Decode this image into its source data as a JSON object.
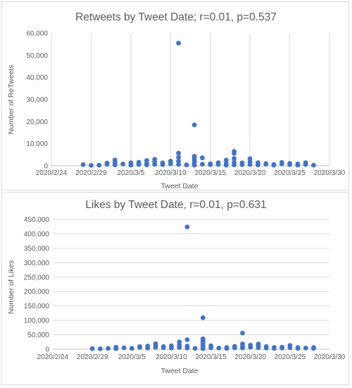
{
  "chart_data": [
    {
      "type": "scatter",
      "title": "Retweets by Tweet Date; r=0.01, p=0.537",
      "xlabel": "Tweet Date",
      "ylabel": "Number of ReTweets",
      "xlim": [
        "2020-02-24",
        "2020-03-30"
      ],
      "ylim": [
        0,
        60000
      ],
      "x_tick_labels": [
        "2020/2/24",
        "2020/2/29",
        "2020/3/5",
        "2020/3/10",
        "2020/3/15",
        "2020/3/20",
        "2020/3/25",
        "2020/3/30"
      ],
      "y_tick_labels": [
        "0",
        "10,000",
        "20,000",
        "30,000",
        "40,000",
        "50,000",
        "60,000"
      ],
      "grid": "vertical",
      "color": "#4472c4",
      "points": [
        [
          "2020-02-28",
          500
        ],
        [
          "2020-02-29",
          200
        ],
        [
          "2020-03-01",
          300
        ],
        [
          "2020-03-02",
          700
        ],
        [
          "2020-03-02",
          1200
        ],
        [
          "2020-03-03",
          400
        ],
        [
          "2020-03-03",
          1500
        ],
        [
          "2020-03-03",
          2600
        ],
        [
          "2020-03-04",
          800
        ],
        [
          "2020-03-05",
          300
        ],
        [
          "2020-03-05",
          1400
        ],
        [
          "2020-03-06",
          600
        ],
        [
          "2020-03-06",
          1600
        ],
        [
          "2020-03-07",
          400
        ],
        [
          "2020-03-07",
          1100
        ],
        [
          "2020-03-07",
          2400
        ],
        [
          "2020-03-08",
          700
        ],
        [
          "2020-03-08",
          1800
        ],
        [
          "2020-03-08",
          2900
        ],
        [
          "2020-03-09",
          500
        ],
        [
          "2020-03-09",
          1300
        ],
        [
          "2020-03-10",
          900
        ],
        [
          "2020-03-10",
          2100
        ],
        [
          "2020-03-11",
          600
        ],
        [
          "2020-03-11",
          2000
        ],
        [
          "2020-03-11",
          3800
        ],
        [
          "2020-03-11",
          5700
        ],
        [
          "2020-03-11",
          55500
        ],
        [
          "2020-03-12",
          400
        ],
        [
          "2020-03-13",
          300
        ],
        [
          "2020-03-13",
          1200
        ],
        [
          "2020-03-13",
          2500
        ],
        [
          "2020-03-13",
          3600
        ],
        [
          "2020-03-13",
          4300
        ],
        [
          "2020-03-13",
          18500
        ],
        [
          "2020-03-14",
          700
        ],
        [
          "2020-03-14",
          3600
        ],
        [
          "2020-03-15",
          900
        ],
        [
          "2020-03-15",
          500
        ],
        [
          "2020-03-16",
          600
        ],
        [
          "2020-03-16",
          1400
        ],
        [
          "2020-03-17",
          300
        ],
        [
          "2020-03-17",
          1100
        ],
        [
          "2020-03-17",
          2600
        ],
        [
          "2020-03-18",
          400
        ],
        [
          "2020-03-18",
          1500
        ],
        [
          "2020-03-18",
          3300
        ],
        [
          "2020-03-18",
          5600
        ],
        [
          "2020-03-18",
          6500
        ],
        [
          "2020-03-19",
          500
        ],
        [
          "2020-03-19",
          1300
        ],
        [
          "2020-03-20",
          600
        ],
        [
          "2020-03-20",
          1800
        ],
        [
          "2020-03-20",
          3200
        ],
        [
          "2020-03-21",
          400
        ],
        [
          "2020-03-21",
          1400
        ],
        [
          "2020-03-22",
          700
        ],
        [
          "2020-03-22",
          1000
        ],
        [
          "2020-03-23",
          300
        ],
        [
          "2020-03-23",
          600
        ],
        [
          "2020-03-24",
          900
        ],
        [
          "2020-03-24",
          1500
        ],
        [
          "2020-03-25",
          500
        ],
        [
          "2020-03-25",
          1100
        ],
        [
          "2020-03-26",
          300
        ],
        [
          "2020-03-26",
          800
        ],
        [
          "2020-03-27",
          600
        ],
        [
          "2020-03-27",
          1400
        ],
        [
          "2020-03-28",
          300
        ]
      ]
    },
    {
      "type": "scatter",
      "title": "Likes by Tweet Date, r=0.01, p=0.631",
      "xlabel": "Tweet Date",
      "ylabel": "Number of Likes",
      "xlim": [
        "2020-02-24",
        "2020-03-30"
      ],
      "ylim": [
        0,
        450000
      ],
      "x_tick_labels": [
        "2020/2/24",
        "2020/2/29",
        "2020/3/5",
        "2020/3/10",
        "2020/3/15",
        "2020/3/20",
        "2020/3/25",
        "2020/3/30"
      ],
      "y_tick_labels": [
        "0",
        "50,000",
        "100,000",
        "150,000",
        "200,000",
        "250,000",
        "300,000",
        "350,000",
        "400,000",
        "450,000"
      ],
      "grid": "horizontal",
      "color": "#4472c4",
      "points": [
        [
          "2020-02-29",
          2000
        ],
        [
          "2020-03-01",
          1500
        ],
        [
          "2020-03-02",
          3000
        ],
        [
          "2020-03-03",
          2000
        ],
        [
          "2020-03-03",
          7000
        ],
        [
          "2020-03-04",
          5000
        ],
        [
          "2020-03-05",
          3000
        ],
        [
          "2020-03-06",
          6000
        ],
        [
          "2020-03-06",
          9000
        ],
        [
          "2020-03-07",
          4000
        ],
        [
          "2020-03-07",
          11000
        ],
        [
          "2020-03-08",
          6000
        ],
        [
          "2020-03-08",
          13000
        ],
        [
          "2020-03-08",
          19000
        ],
        [
          "2020-03-09",
          5000
        ],
        [
          "2020-03-09",
          9000
        ],
        [
          "2020-03-10",
          4000
        ],
        [
          "2020-03-10",
          12000
        ],
        [
          "2020-03-11",
          6000
        ],
        [
          "2020-03-11",
          14000
        ],
        [
          "2020-03-11",
          25000
        ],
        [
          "2020-03-12",
          4000
        ],
        [
          "2020-03-12",
          11000
        ],
        [
          "2020-03-12",
          33000
        ],
        [
          "2020-03-12",
          424000
        ],
        [
          "2020-03-13",
          3000
        ],
        [
          "2020-03-14",
          2000
        ],
        [
          "2020-03-14",
          9000
        ],
        [
          "2020-03-14",
          16000
        ],
        [
          "2020-03-14",
          23000
        ],
        [
          "2020-03-14",
          30000
        ],
        [
          "2020-03-14",
          36000
        ],
        [
          "2020-03-14",
          109000
        ],
        [
          "2020-03-15",
          5000
        ],
        [
          "2020-03-15",
          12000
        ],
        [
          "2020-03-16",
          4000
        ],
        [
          "2020-03-17",
          6000
        ],
        [
          "2020-03-17",
          3000
        ],
        [
          "2020-03-18",
          5000
        ],
        [
          "2020-03-18",
          10000
        ],
        [
          "2020-03-19",
          4000
        ],
        [
          "2020-03-19",
          10000
        ],
        [
          "2020-03-19",
          18000
        ],
        [
          "2020-03-19",
          56000
        ],
        [
          "2020-03-20",
          7000
        ],
        [
          "2020-03-20",
          14000
        ],
        [
          "2020-03-21",
          5000
        ],
        [
          "2020-03-21",
          12000
        ],
        [
          "2020-03-21",
          18000
        ],
        [
          "2020-03-22",
          4000
        ],
        [
          "2020-03-22",
          9000
        ],
        [
          "2020-03-23",
          3000
        ],
        [
          "2020-03-23",
          6000
        ],
        [
          "2020-03-24",
          4000
        ],
        [
          "2020-03-24",
          7000
        ],
        [
          "2020-03-25",
          5000
        ],
        [
          "2020-03-25",
          13000
        ],
        [
          "2020-03-26",
          3000
        ],
        [
          "2020-03-26",
          6000
        ],
        [
          "2020-03-27",
          4000
        ],
        [
          "2020-03-28",
          3000
        ],
        [
          "2020-03-28",
          6000
        ]
      ]
    }
  ]
}
